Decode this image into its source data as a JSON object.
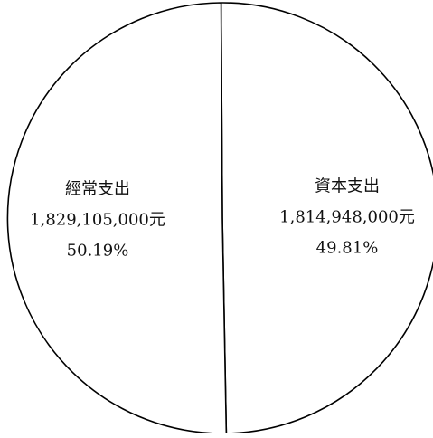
{
  "chart_data": {
    "type": "pie",
    "title": "",
    "unit": "元",
    "slices": [
      {
        "name": "資本支出",
        "amount": "1,814,948,000元",
        "value": 1814948000,
        "percent": "49.81%",
        "percent_value": 49.81
      },
      {
        "name": "經常支出",
        "amount": "1,829,105,000元",
        "value": 1829105000,
        "percent": "50.19%",
        "percent_value": 50.19
      }
    ],
    "legend": "none",
    "colors": {
      "fill": "#ffffff",
      "stroke": "#000000"
    }
  }
}
